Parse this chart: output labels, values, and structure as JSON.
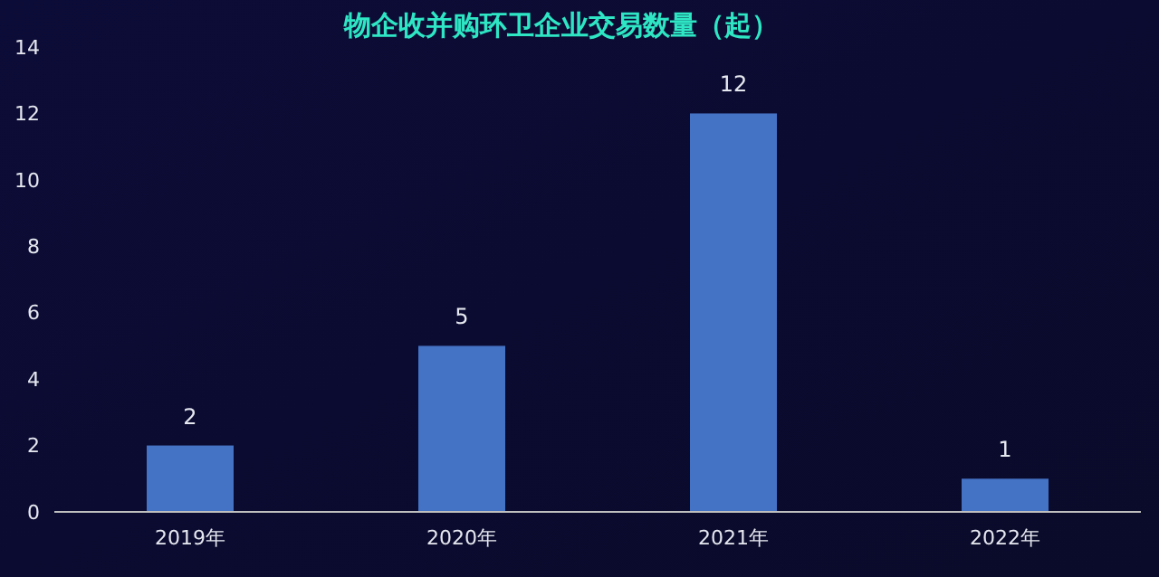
{
  "chart_data": {
    "type": "bar",
    "title": "物企收并购环卫企业交易数量（起）",
    "categories": [
      "2019年",
      "2020年",
      "2021年",
      "2022年"
    ],
    "values": [
      2,
      5,
      12,
      1
    ],
    "color": "#4472c4",
    "ylim": [
      0,
      14
    ],
    "yticks": [
      0,
      2,
      4,
      6,
      8,
      10,
      12,
      14
    ],
    "grid": false,
    "data_labels": true
  }
}
